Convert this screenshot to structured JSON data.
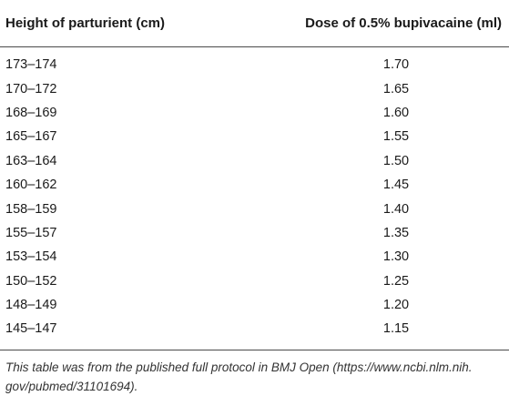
{
  "table": {
    "headers": [
      "Height of parturient (cm)",
      "Dose of 0.5% bupivacaine (ml)"
    ],
    "rows": [
      [
        "173–174",
        "1.70"
      ],
      [
        "170–172",
        "1.65"
      ],
      [
        "168–169",
        "1.60"
      ],
      [
        "165–167",
        "1.55"
      ],
      [
        "163–164",
        "1.50"
      ],
      [
        "160–162",
        "1.45"
      ],
      [
        "158–159",
        "1.40"
      ],
      [
        "155–157",
        "1.35"
      ],
      [
        "153–154",
        "1.30"
      ],
      [
        "150–152",
        "1.25"
      ],
      [
        "148–149",
        "1.20"
      ],
      [
        "145–147",
        "1.15"
      ]
    ],
    "footnote_line1": "This table was from the published full protocol in BMJ Open (https://www.ncbi.nlm.nih.",
    "footnote_line2": "gov/pubmed/31101694)."
  }
}
